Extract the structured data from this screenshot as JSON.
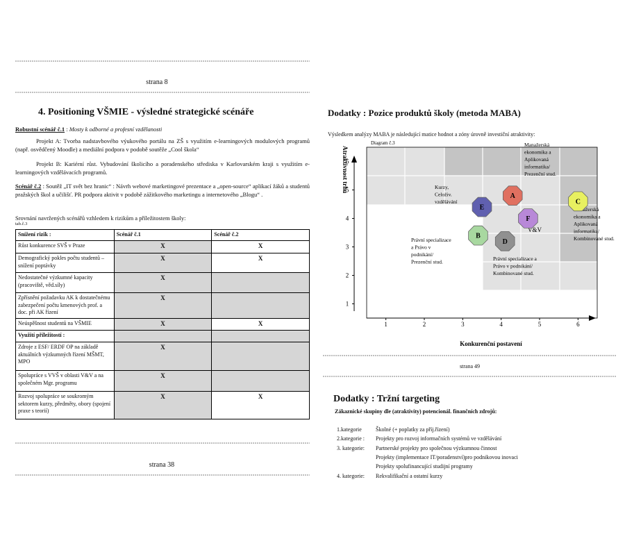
{
  "left": {
    "header_page": "strana 8",
    "title": "4. Positioning VŠMIE  - výsledné strategické scénáře",
    "scenario1": {
      "label": "Robustní scénář č.1",
      "sep": " : ",
      "text": "Mosty k odborné a profesní vzdělanosti"
    },
    "project_a": "Projekt A: Tvorba  nadstavbového výukového  portálu na ZŠ s využitím e-learningových modulových programů (např. osvědčený Moodle) a mediální podpora v podobě soutěže „Cool škola“",
    "project_b": "Projekt B:  Kariérní růst. Vybudování školicího a poradenského   střediska   v Karlovarském kraji s využitím  e-learningových vzdělávacích programů.",
    "scenario2": {
      "label": "Scénář č.2",
      "text": " : Soutěž „IT svět bez hranic“ :  Návrh webové marketingové  prezentace  a „open-source“ aplikací žáků a studentů pražských  škol a učilišť.  PR podpora aktivit v podobě  zážitkového marketingu a internetového „Blogu“ ."
    },
    "compare_intro": "Srovnání navržených scénářů vzhledem k rizikům a příležitostem školy:",
    "table_id": "tab.č.3",
    "table": {
      "header": [
        "Snížení rizik :",
        "Scénář č.1",
        "Scénář č.2"
      ],
      "rows": [
        [
          "Růst konkurence SVŠ v Praze",
          "X",
          "X"
        ],
        [
          "Demografický pokles počtu studentů – snížení poptávky",
          "X",
          "X"
        ],
        [
          "Nedostatečné výzkumné kapacity (pracoviště, věd.síly)",
          "X",
          null
        ],
        [
          "Zpřísnění požadavku AK k dostatečnému zabezpečení počtu kmenových prof. a doc. při AK řízení",
          "X",
          null
        ],
        [
          "Neúspěšnost studentů na VŠMIE",
          "X",
          "X"
        ],
        [
          "Využití příležitostí :",
          null,
          null
        ],
        [
          "Zdroje z ESF/ ERDF OP na základě aktuálních výzkumných řízení MŠMT, MPO",
          "X",
          null
        ],
        [
          "Spolupráce s VVŠ v oblasti V&V a na společném Mgr. programu",
          "X",
          null
        ],
        [
          "Rozvoj spolupráce se soukromým sektorem kurzy, předměty, obory (spojení praxe s teorií)",
          "X",
          "X"
        ]
      ]
    },
    "footer_page": "strana 38"
  },
  "right": {
    "title": "Dodatky : Pozice produktů školy (metoda MABA)",
    "intro": "Výsledkem analýzy MABA  je následující matice hodnot a zóny úrovně investiční atraktivity:",
    "diagram": {
      "caption": "Diagram č.3",
      "x_label": "Konkurenční postavení",
      "y_label": "Atraktivnost trhu",
      "xlim": [
        0.5,
        6.5
      ],
      "ylim": [
        0.5,
        6.5
      ],
      "xticks": [
        1,
        2,
        3,
        4,
        5,
        6
      ],
      "yticks": [
        1,
        2,
        3,
        4,
        5,
        6
      ],
      "points": [
        {
          "label": "A",
          "x": 4.3,
          "y": 4.8,
          "color": "#e07060"
        },
        {
          "label": "B",
          "x": 3.4,
          "y": 3.4,
          "color": "#a8d8a0"
        },
        {
          "label": "C",
          "x": 6.0,
          "y": 4.6,
          "color": "#e8f060"
        },
        {
          "label": "D",
          "x": 4.1,
          "y": 3.2,
          "color": "#909090"
        },
        {
          "label": "E",
          "x": 3.5,
          "y": 4.4,
          "color": "#6060b0"
        },
        {
          "label": "F",
          "x": 4.7,
          "y": 4.0,
          "color": "#b888d8"
        }
      ],
      "annotations": [
        {
          "lines": [
            "Kurzy,",
            "Celoživ.",
            "vzdělávání"
          ]
        },
        {
          "lines": [
            "Manažerská",
            "ekonomika a",
            "Aplikovaná",
            "informatika/",
            "Prezenční stud."
          ]
        },
        {
          "lines": [
            "Manažerská",
            "ekonomika a",
            "Aplikovaná",
            "informatika/",
            "Kombinované stud."
          ]
        },
        {
          "lines": [
            "Právní specializace",
            "a Právo v",
            "podnikání/",
            "Prezenční stud."
          ]
        },
        {
          "lines": [
            "Právní specializace a",
            "Právo v podnikání/",
            "Kombinované stud."
          ]
        },
        {
          "lines": [
            "V&V"
          ]
        }
      ]
    },
    "page": "strana 49",
    "title2": "Dodatky :  Tržní targeting",
    "subtitle2": "Zákaznické skupiny  dle (atraktivity) potencionál. finančních  zdrojů:",
    "list": [
      {
        "label": "1.kategorie",
        "text": "Školné (+ poplatky za příj.řízení)"
      },
      {
        "label": "2.kategorie :",
        "text": "Projekty pro rozvoj informačních systémů ve vzdělávání"
      },
      {
        "label": "3. kategorie:",
        "text": "Partnerské projekty pro společnou výzkumnou činnost"
      },
      {
        "label": null,
        "text": "Projekty (implementace IT/poradenství)pro podnikovou inovaci"
      },
      {
        "label": null,
        "text": "Projekty spolufinancující studijní programy"
      },
      {
        "label": "4. kategorie:",
        "text": "Rekvalifikační a ostatní kurzy"
      }
    ]
  }
}
